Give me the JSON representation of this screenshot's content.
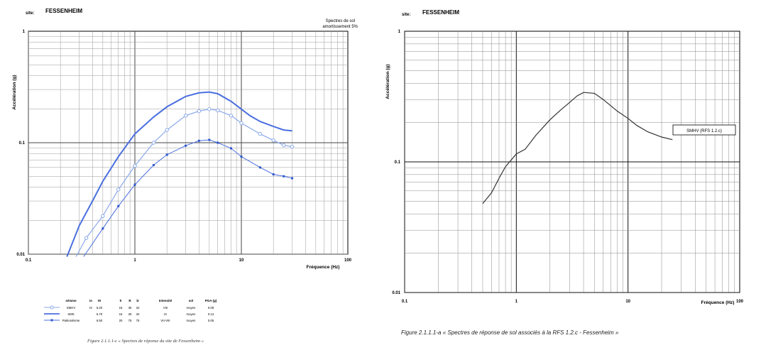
{
  "left": {
    "site_label": "site:",
    "site_name": "FESSENHEIM",
    "note_line1": "Spectres de sol",
    "note_line2": "amortissement 5%",
    "ylabel": "Accélération (g)",
    "xlabel": "Fréquence (Hz)",
    "x_ticks": [
      "0.1",
      "1",
      "10",
      "100"
    ],
    "y_ticks": [
      "1",
      "0.1",
      "0.01"
    ],
    "legend_headers": [
      "séisme",
      "Io",
      "M",
      "h",
      "R",
      "D",
      "Intensité",
      "sol",
      "PGA (g)"
    ],
    "legend_rows": [
      [
        "SMHV",
        "IX",
        "6.20",
        "15",
        "30",
        "34",
        "VIII",
        "moyen",
        "0.09"
      ],
      [
        "SMS",
        "",
        "6.70",
        "15",
        "30",
        "34",
        "IX",
        "moyen",
        "0.13"
      ],
      [
        "Paléoséisme",
        "",
        "6.50",
        "20",
        "75",
        "75",
        "VII-VIII",
        "moyen",
        "0.05"
      ]
    ],
    "caption": "Figure 2.1.1.1-c « Spectres de réponse du site de Fessenheim »"
  },
  "right": {
    "site_label": "site:",
    "site_name": "FESSENHEIM",
    "ylabel": "Accélération (g)",
    "xlabel": "Fréquence (Hz)",
    "x_ticks": [
      "0.1",
      "1",
      "10",
      "100"
    ],
    "y_ticks": [
      "1",
      "0.1",
      "0.01"
    ],
    "annotation": "SMHV (RFS 1.2.c)",
    "caption": "Figure 2.1.1.1-a « Spectres de réponse de sol associés à la RFS 1.2.c - Fessenheim »"
  },
  "colors": {
    "blue_dark": "#4a6fe0",
    "blue_light": "#8aa8ea",
    "blue_marker": "#2f58cc",
    "black_line": "#333333"
  },
  "chart_data": [
    {
      "type": "line",
      "title": "",
      "xlabel": "Fréquence (Hz)",
      "ylabel": "Accélération (g)",
      "xscale": "log",
      "yscale": "log",
      "xlim": [
        0.1,
        100
      ],
      "ylim": [
        0.01,
        1
      ],
      "grid": true,
      "series": [
        {
          "name": "SMS",
          "style": "solid-thick",
          "x": [
            0.23,
            0.3,
            0.4,
            0.5,
            0.7,
            1,
            1.5,
            2,
            3,
            4,
            5,
            6,
            8,
            10,
            12,
            15,
            20,
            25,
            30
          ],
          "y": [
            0.0095,
            0.018,
            0.03,
            0.045,
            0.075,
            0.12,
            0.17,
            0.21,
            0.26,
            0.28,
            0.285,
            0.275,
            0.235,
            0.2,
            0.175,
            0.155,
            0.14,
            0.13,
            0.128
          ]
        },
        {
          "name": "SMHV",
          "style": "open-circles",
          "x": [
            0.28,
            0.35,
            0.5,
            0.7,
            1,
            1.5,
            2,
            3,
            4,
            5,
            6,
            8,
            10,
            15,
            20,
            25,
            30
          ],
          "y": [
            0.0095,
            0.014,
            0.022,
            0.038,
            0.062,
            0.1,
            0.13,
            0.175,
            0.192,
            0.2,
            0.195,
            0.175,
            0.15,
            0.12,
            0.105,
            0.095,
            0.092
          ]
        },
        {
          "name": "Paléoséisme",
          "style": "filled-dots",
          "x": [
            0.33,
            0.5,
            0.7,
            1,
            1.5,
            2,
            3,
            4,
            5,
            6,
            8,
            10,
            15,
            20,
            25,
            30
          ],
          "y": [
            0.0095,
            0.017,
            0.027,
            0.042,
            0.063,
            0.078,
            0.094,
            0.104,
            0.106,
            0.1,
            0.089,
            0.075,
            0.06,
            0.052,
            0.05,
            0.048
          ]
        }
      ]
    },
    {
      "type": "line",
      "title": "",
      "xlabel": "Fréquence (Hz)",
      "ylabel": "Accélération (g)",
      "xscale": "log",
      "yscale": "log",
      "xlim": [
        0.1,
        100
      ],
      "ylim": [
        0.01,
        1
      ],
      "grid": true,
      "series": [
        {
          "name": "SMHV (RFS 1.2.c)",
          "x": [
            0.5,
            0.6,
            0.7,
            0.8,
            1.0,
            1.2,
            1.5,
            2.0,
            2.5,
            3.0,
            3.5,
            4.0,
            5.0,
            6.0,
            8.0,
            10,
            12,
            15,
            20,
            25
          ],
          "y": [
            0.048,
            0.058,
            0.075,
            0.092,
            0.115,
            0.125,
            0.16,
            0.21,
            0.25,
            0.285,
            0.32,
            0.34,
            0.335,
            0.3,
            0.245,
            0.215,
            0.19,
            0.17,
            0.155,
            0.148
          ]
        }
      ]
    }
  ]
}
